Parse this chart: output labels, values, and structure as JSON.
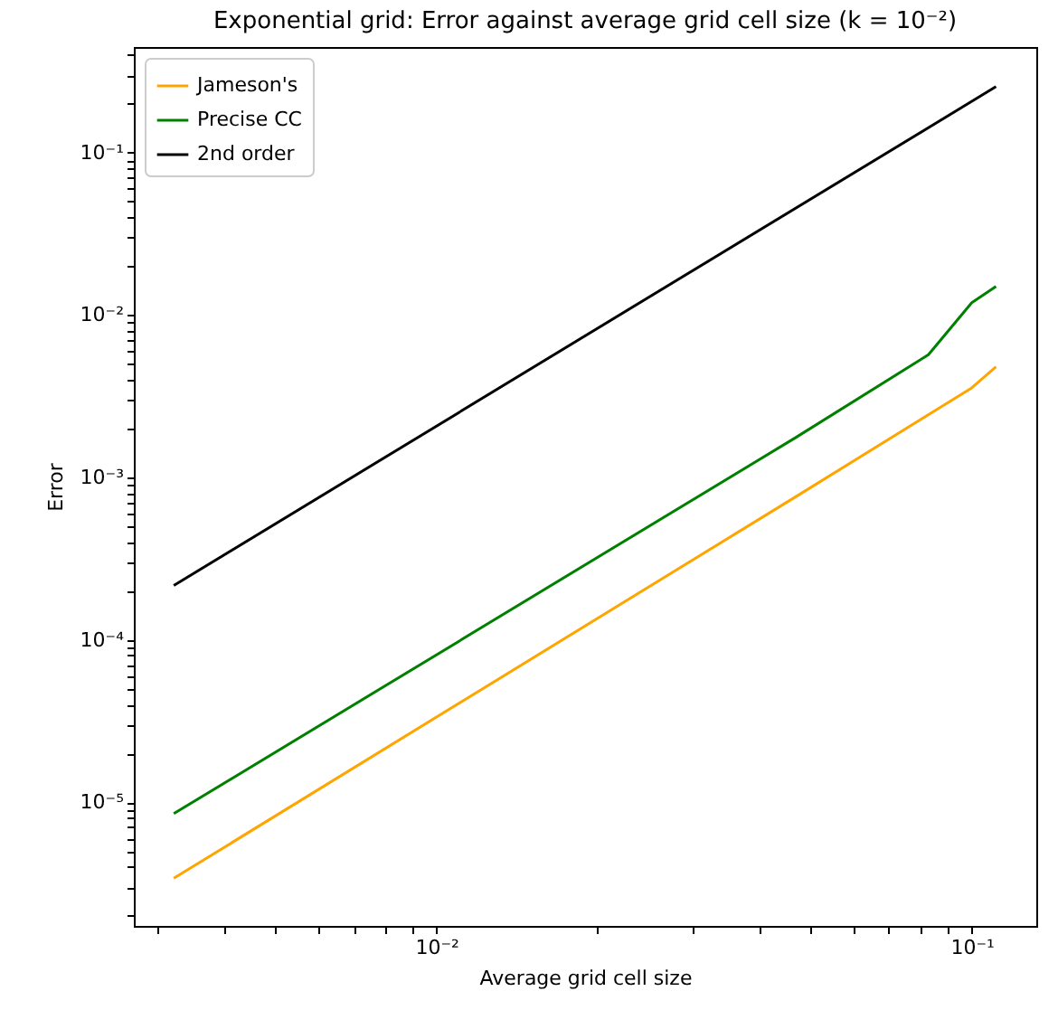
{
  "chart_data": {
    "type": "line",
    "title": "Exponential grid: Error against average grid cell size (k = 10⁻²)",
    "xlabel": "Average grid cell size",
    "ylabel": "Error",
    "log": "xy",
    "grid": false,
    "legend": "top left",
    "marker": "none",
    "line_style": "solid",
    "xlim": [
      0.00272,
      0.132
    ],
    "ylim": [
      1.73e-06,
      0.447
    ],
    "xticks": [
      {
        "value": 0.003,
        "label": null
      },
      {
        "value": 0.004,
        "label": null
      },
      {
        "value": 0.005,
        "label": null
      },
      {
        "value": 0.006,
        "label": null
      },
      {
        "value": 0.007,
        "label": null
      },
      {
        "value": 0.008,
        "label": null
      },
      {
        "value": 0.009,
        "label": null
      },
      {
        "value": 0.01,
        "label": "10⁻²"
      },
      {
        "value": 0.02,
        "label": null
      },
      {
        "value": 0.03,
        "label": null
      },
      {
        "value": 0.04,
        "label": null
      },
      {
        "value": 0.05,
        "label": null
      },
      {
        "value": 0.06,
        "label": null
      },
      {
        "value": 0.07,
        "label": null
      },
      {
        "value": 0.08,
        "label": null
      },
      {
        "value": 0.09,
        "label": null
      },
      {
        "value": 0.1,
        "label": "10⁻¹"
      }
    ],
    "yticks": [
      {
        "value": 2e-06,
        "label": null
      },
      {
        "value": 3e-06,
        "label": null
      },
      {
        "value": 4e-06,
        "label": null
      },
      {
        "value": 5e-06,
        "label": null
      },
      {
        "value": 6e-06,
        "label": null
      },
      {
        "value": 7e-06,
        "label": null
      },
      {
        "value": 8e-06,
        "label": null
      },
      {
        "value": 9e-06,
        "label": null
      },
      {
        "value": 1e-05,
        "label": "10⁻⁵"
      },
      {
        "value": 2e-05,
        "label": null
      },
      {
        "value": 3e-05,
        "label": null
      },
      {
        "value": 4e-05,
        "label": null
      },
      {
        "value": 5e-05,
        "label": null
      },
      {
        "value": 6e-05,
        "label": null
      },
      {
        "value": 7e-05,
        "label": null
      },
      {
        "value": 8e-05,
        "label": null
      },
      {
        "value": 9e-05,
        "label": null
      },
      {
        "value": 0.0001,
        "label": "10⁻⁴"
      },
      {
        "value": 0.0002,
        "label": null
      },
      {
        "value": 0.0003,
        "label": null
      },
      {
        "value": 0.0004,
        "label": null
      },
      {
        "value": 0.0005,
        "label": null
      },
      {
        "value": 0.0006,
        "label": null
      },
      {
        "value": 0.0007,
        "label": null
      },
      {
        "value": 0.0008,
        "label": null
      },
      {
        "value": 0.0009,
        "label": null
      },
      {
        "value": 0.001,
        "label": "10⁻³"
      },
      {
        "value": 0.002,
        "label": null
      },
      {
        "value": 0.003,
        "label": null
      },
      {
        "value": 0.004,
        "label": null
      },
      {
        "value": 0.005,
        "label": null
      },
      {
        "value": 0.006,
        "label": null
      },
      {
        "value": 0.007,
        "label": null
      },
      {
        "value": 0.008,
        "label": null
      },
      {
        "value": 0.009,
        "label": null
      },
      {
        "value": 0.01,
        "label": "10⁻²"
      },
      {
        "value": 0.02,
        "label": null
      },
      {
        "value": 0.03,
        "label": null
      },
      {
        "value": 0.04,
        "label": null
      },
      {
        "value": 0.05,
        "label": null
      },
      {
        "value": 0.06,
        "label": null
      },
      {
        "value": 0.07,
        "label": null
      },
      {
        "value": 0.08,
        "label": null
      },
      {
        "value": 0.09,
        "label": null
      },
      {
        "value": 0.1,
        "label": "10⁻¹"
      },
      {
        "value": 0.2,
        "label": null
      },
      {
        "value": 0.3,
        "label": null
      },
      {
        "value": 0.4,
        "label": null
      }
    ],
    "series": [
      {
        "name": "Jameson's",
        "color": "#ffa500",
        "x": [
          0.00323,
          0.0469,
          0.1,
          0.111
        ],
        "values": [
          3.4e-06,
          0.00076,
          0.00356,
          0.0048
        ]
      },
      {
        "name": "Precise CC",
        "color": "#008000",
        "x": [
          0.00323,
          0.0469,
          0.083,
          0.1,
          0.111
        ],
        "values": [
          8.5e-06,
          0.00176,
          0.0057,
          0.0119,
          0.015
        ]
      },
      {
        "name": "2nd order",
        "color": "#000000",
        "x": [
          0.00323,
          0.111
        ],
        "values": [
          0.000216,
          0.255
        ]
      }
    ]
  }
}
